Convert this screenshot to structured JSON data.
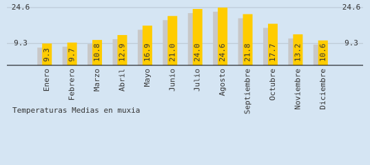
{
  "chart_data": {
    "type": "bar",
    "title": "Temperaturas Medias en muxia",
    "categories": [
      "Enero",
      "Febrero",
      "Marzo",
      "Abril",
      "Mayo",
      "Junio",
      "Julio",
      "Agosto",
      "Septiembre",
      "Octubre",
      "Noviembre",
      "Diciembre"
    ],
    "values": [
      9.3,
      9.7,
      10.8,
      12.9,
      16.9,
      21.0,
      24.0,
      24.6,
      21.8,
      17.7,
      13.2,
      10.6
    ],
    "value_labels": [
      "9.3",
      "9.7",
      "10.8",
      "12.9",
      "16.9",
      "21.0",
      "24.0",
      "24.6",
      "21.8",
      "17.7",
      "13.2",
      "10.6"
    ],
    "color": "#ffcc00",
    "shadow_color": "#c8c8c8",
    "ylim": [
      0,
      24.6
    ],
    "yticks": [
      9.3,
      24.6
    ],
    "grid": true
  }
}
